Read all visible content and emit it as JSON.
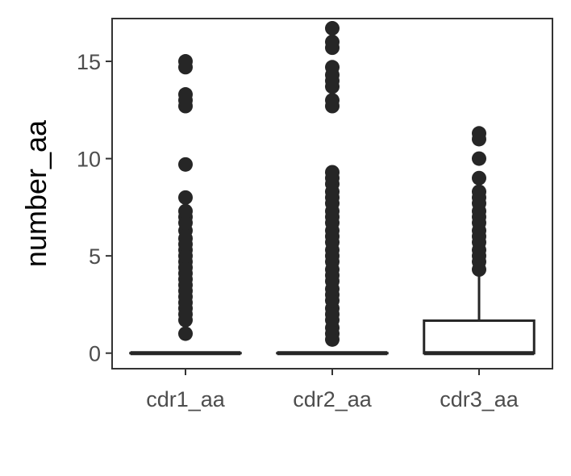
{
  "chart_data": {
    "type": "box",
    "title": "",
    "xlabel": "",
    "ylabel": "number_aa",
    "ylim": [
      -0.8,
      17.2
    ],
    "yticks": [
      0,
      5,
      10,
      15
    ],
    "ytick_labels": [
      "0",
      "5",
      "10",
      "15"
    ],
    "grid": false,
    "legend": "none",
    "categories": [
      "cdr1_aa",
      "cdr2_aa",
      "cdr3_aa"
    ],
    "boxes": [
      {
        "name": "cdr1_aa",
        "min": 0,
        "q1": 0,
        "median": 0,
        "q3": 0,
        "max": 0,
        "outliers": [
          1.0,
          1.7,
          2.0,
          2.3,
          2.6,
          2.9,
          3.2,
          3.5,
          3.8,
          4.1,
          4.4,
          4.7,
          5.0,
          5.3,
          5.6,
          5.9,
          6.3,
          6.7,
          7.0,
          7.3,
          8.0,
          9.7,
          12.7,
          13.0,
          13.3,
          14.7,
          15.0
        ]
      },
      {
        "name": "cdr2_aa",
        "min": 0,
        "q1": 0,
        "median": 0,
        "q3": 0,
        "max": 0,
        "outliers": [
          0.7,
          1.0,
          1.3,
          1.7,
          2.0,
          2.3,
          2.7,
          3.0,
          3.3,
          3.7,
          4.0,
          4.3,
          4.7,
          5.0,
          5.3,
          5.7,
          6.0,
          6.3,
          6.7,
          7.0,
          7.3,
          7.7,
          8.0,
          8.3,
          8.7,
          9.0,
          9.3,
          12.7,
          13.0,
          13.7,
          14.0,
          14.3,
          14.7,
          15.7,
          16.0,
          16.7
        ]
      },
      {
        "name": "cdr3_aa",
        "min": 0,
        "q1": 0,
        "median": 0,
        "q3": 1.67,
        "max": 4.0,
        "outliers": [
          4.3,
          4.7,
          5.0,
          5.3,
          5.7,
          6.0,
          6.3,
          6.7,
          7.0,
          7.3,
          7.7,
          8.0,
          8.3,
          9.0,
          10.0,
          11.0,
          11.3
        ]
      }
    ],
    "colors": {
      "box_stroke": "#262626",
      "points": "#262626",
      "axis": "#333333",
      "tick_text": "#4d4d4d",
      "title_text": "#000000"
    }
  }
}
